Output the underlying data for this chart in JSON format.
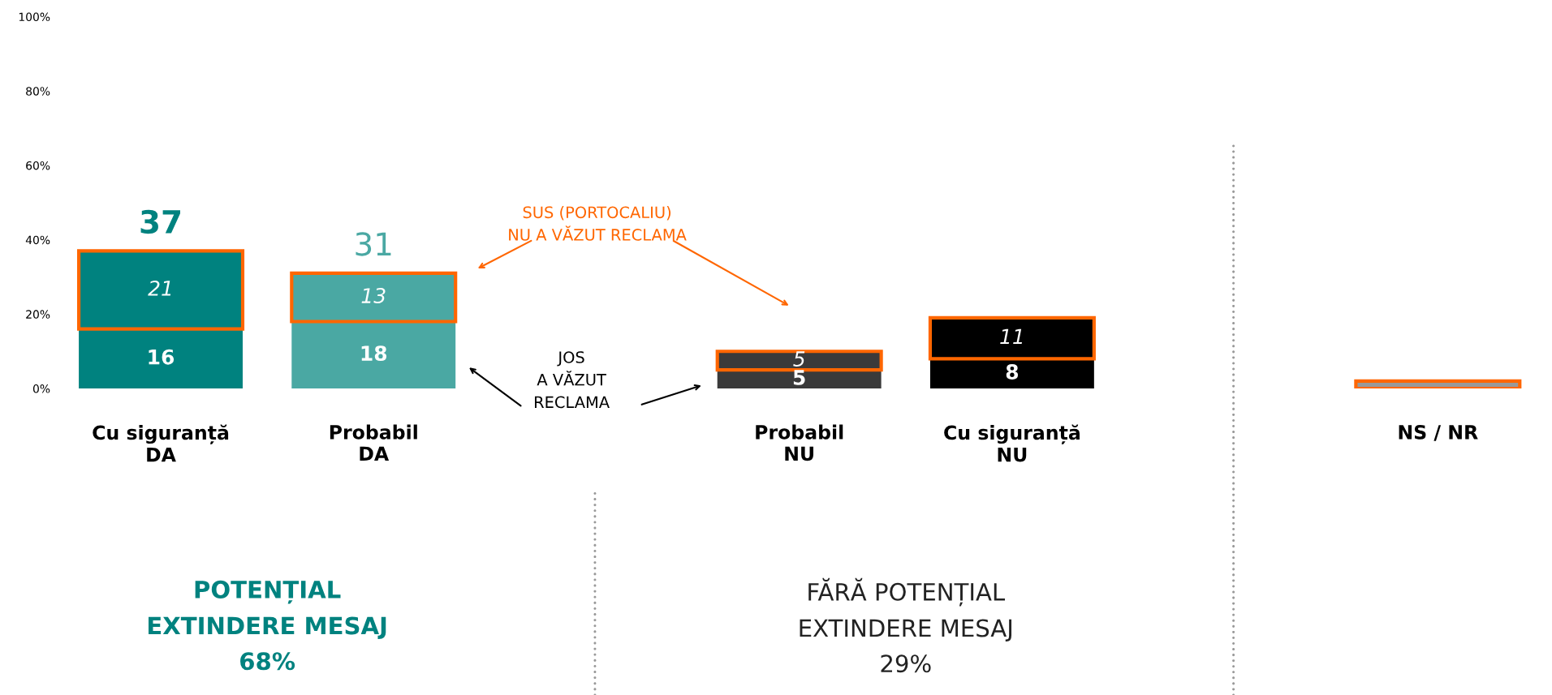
{
  "chart_data": {
    "type": "bar",
    "stacked": true,
    "categories": [
      "Cu siguranță\nDA",
      "Probabil\nDA",
      null,
      "Probabil\nNU",
      "Cu siguranță\nNU",
      null,
      "NS / NR"
    ],
    "series": [
      {
        "colors": [
          "#00827f",
          "#4aa8a3",
          null,
          "#3a3a3a",
          "#000000",
          null,
          "#999999"
        ],
        "values": [
          16,
          18,
          null,
          5,
          8,
          null,
          null
        ],
        "value_labels": [
          "16",
          "18",
          null,
          "5",
          "8",
          null,
          null
        ]
      },
      {
        "colors": [
          "#00827f",
          "#4aa8a3",
          null,
          "#3a3a3a",
          "#000000",
          null,
          "#999999"
        ],
        "values": [
          21,
          13,
          null,
          5,
          11,
          null,
          2
        ],
        "value_labels": [
          "21",
          "13",
          null,
          "5",
          "11",
          null,
          null
        ]
      }
    ],
    "totals": [
      "37",
      "31",
      null,
      null,
      null,
      null,
      null
    ],
    "ylim": [
      0,
      100
    ],
    "yticks": [
      {
        "value": 0,
        "label": "0%"
      },
      {
        "value": 20,
        "label": "20%"
      },
      {
        "value": 40,
        "label": "40%"
      },
      {
        "value": 60,
        "label": "60%"
      },
      {
        "value": 80,
        "label": "80%"
      },
      {
        "value": 100,
        "label": "100%"
      }
    ],
    "grid": false,
    "legend": false,
    "annotations": [
      "SUS (PORTOCALIU)\nNU A VĂZUT RECLAMA",
      "JOS\nA VĂZUT\nRECLAMA",
      "POTENȚIAL\nEXTINDERE MESAJ\n68%",
      "FĂRĂ POTENȚIAL\nEXTINDERE MESAJ\n29%"
    ]
  }
}
